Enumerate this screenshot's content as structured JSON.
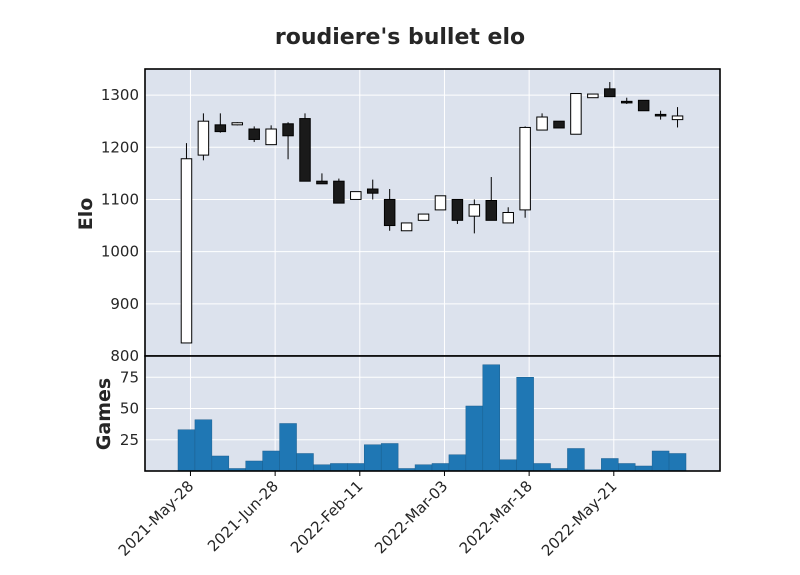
{
  "chart_data": {
    "type": "candlestick",
    "title": "roudiere's bullet elo",
    "x_tick_labels": [
      "2021-May-28",
      "2021-Jun-28",
      "2022-Feb-11",
      "2022-Mar-03",
      "2022-Mar-18",
      "2022-May-21"
    ],
    "price_panel": {
      "ylabel": "Elo",
      "ylim": [
        800,
        1350
      ],
      "yticks": [
        800,
        900,
        1000,
        1100,
        1200,
        1300
      ],
      "candles": [
        {
          "open": 825,
          "close": 1178,
          "low": 825,
          "high": 1208
        },
        {
          "open": 1185,
          "close": 1250,
          "low": 1175,
          "high": 1265
        },
        {
          "open": 1243,
          "close": 1230,
          "low": 1228,
          "high": 1265
        },
        {
          "open": 1243,
          "close": 1247,
          "low": 1242,
          "high": 1248
        },
        {
          "open": 1235,
          "close": 1215,
          "low": 1210,
          "high": 1240
        },
        {
          "open": 1205,
          "close": 1235,
          "low": 1205,
          "high": 1242
        },
        {
          "open": 1245,
          "close": 1222,
          "low": 1177,
          "high": 1248
        },
        {
          "open": 1255,
          "close": 1135,
          "low": 1135,
          "high": 1265
        },
        {
          "open": 1135,
          "close": 1130,
          "low": 1130,
          "high": 1150
        },
        {
          "open": 1135,
          "close": 1093,
          "low": 1093,
          "high": 1140
        },
        {
          "open": 1100,
          "close": 1115,
          "low": 1100,
          "high": 1115
        },
        {
          "open": 1120,
          "close": 1112,
          "low": 1100,
          "high": 1138
        },
        {
          "open": 1100,
          "close": 1050,
          "low": 1040,
          "high": 1120
        },
        {
          "open": 1040,
          "close": 1055,
          "low": 1040,
          "high": 1055
        },
        {
          "open": 1060,
          "close": 1072,
          "low": 1060,
          "high": 1072
        },
        {
          "open": 1080,
          "close": 1107,
          "low": 1080,
          "high": 1107
        },
        {
          "open": 1100,
          "close": 1060,
          "low": 1053,
          "high": 1100
        },
        {
          "open": 1068,
          "close": 1090,
          "low": 1035,
          "high": 1100
        },
        {
          "open": 1098,
          "close": 1060,
          "low": 1060,
          "high": 1143
        },
        {
          "open": 1055,
          "close": 1075,
          "low": 1055,
          "high": 1085
        },
        {
          "open": 1080,
          "close": 1238,
          "low": 1065,
          "high": 1240
        },
        {
          "open": 1233,
          "close": 1258,
          "low": 1233,
          "high": 1265
        },
        {
          "open": 1250,
          "close": 1237,
          "low": 1237,
          "high": 1250
        },
        {
          "open": 1225,
          "close": 1303,
          "low": 1225,
          "high": 1303
        },
        {
          "open": 1295,
          "close": 1302,
          "low": 1295,
          "high": 1302
        },
        {
          "open": 1312,
          "close": 1297,
          "low": 1297,
          "high": 1325
        },
        {
          "open": 1288,
          "close": 1285,
          "low": 1283,
          "high": 1295
        },
        {
          "open": 1290,
          "close": 1270,
          "low": 1270,
          "high": 1290
        },
        {
          "open": 1263,
          "close": 1260,
          "low": 1253,
          "high": 1270
        },
        {
          "open": 1253,
          "close": 1260,
          "low": 1238,
          "high": 1277
        }
      ]
    },
    "volume_panel": {
      "ylabel": "Games",
      "ylim": [
        0,
        92
      ],
      "yticks": [
        25,
        50,
        75
      ],
      "values": [
        33,
        41,
        12,
        2,
        8,
        16,
        38,
        14,
        5,
        6,
        6,
        21,
        22,
        2,
        5,
        6,
        13,
        52,
        85,
        9,
        75,
        6,
        2,
        18,
        1,
        10,
        6,
        4,
        16,
        14
      ]
    },
    "colors": {
      "up": "#ffffff",
      "down": "#1a1a1a",
      "volume": "#1f77b4",
      "panel_bg": "#dce2ed",
      "grid": "#ffffff"
    },
    "grid": true
  }
}
